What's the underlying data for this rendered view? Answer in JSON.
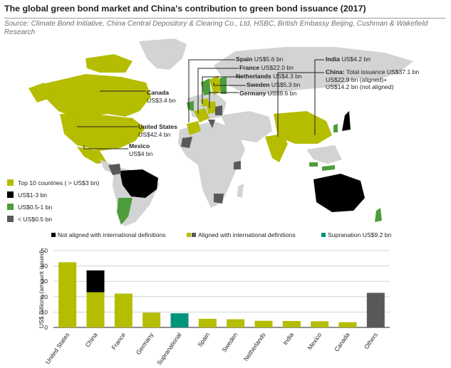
{
  "title": "The global green bond market and China's contribution to green bond issuance (2017)",
  "source": "Source: Climate Bond Initiative, China Central Depository & Clearing Co., Ltd, HSBC, British Embassy Beijing, Cushman & Wakefield Research",
  "colors": {
    "top10": "#b5bd00",
    "tier1_3": "#000000",
    "tier05_1": "#4d9d3a",
    "tierlow": "#58595b",
    "supranational": "#00957a",
    "land": "#d1d3d4",
    "others": "#58595b"
  },
  "map_labels": {
    "canada": {
      "name": "Canada",
      "value": "US$3.4 bn"
    },
    "united_states": {
      "name": "United States",
      "value": "US$42.4 bn"
    },
    "mexico": {
      "name": "Mexico",
      "value": "US$4 bn"
    },
    "spain": {
      "name": "Spain",
      "value": "US$5.6 bn"
    },
    "france": {
      "name": "France",
      "value": "US$22.0 bn"
    },
    "netherlands": {
      "name": "Netherlands",
      "value": "US$4.3 bn"
    },
    "sweden": {
      "name": "Sweden",
      "value": "US$5.3 bn"
    },
    "germany": {
      "name": "Germany",
      "value": "US$9.6 bn"
    },
    "india": {
      "name": "India",
      "value": "US$4.2 bn"
    },
    "china": {
      "name": "China:",
      "line1": "Total issuance US$37.1 bn",
      "line2": "US$22.9 bn (aligned)+",
      "line3": "US$14.2 bn (not aligned)"
    }
  },
  "map_legend": [
    {
      "label": "Top 10 countries ( > US$3 bn)",
      "color": "#b5bd00"
    },
    {
      "label": "US$1-3 bn",
      "color": "#000000"
    },
    {
      "label": "US$0.5-1 bn",
      "color": "#4d9d3a"
    },
    {
      "label": "< US$0.5 bn",
      "color": "#58595b"
    }
  ],
  "chart_data": {
    "type": "bar",
    "stacked": true,
    "categories": [
      "United States",
      "China",
      "France",
      "Germany",
      "Supranational",
      "Spain",
      "Sweden",
      "Netherlands",
      "India",
      "Mexico",
      "Canada",
      "Others"
    ],
    "series": [
      {
        "name": "Aligned with international definitions",
        "values": [
          42.4,
          22.9,
          22.0,
          9.6,
          0,
          5.6,
          5.3,
          4.3,
          4.2,
          4.0,
          3.4,
          22.5
        ]
      },
      {
        "name": "Not aligned with international definitions",
        "values": [
          0,
          14.2,
          0,
          0,
          0,
          0,
          0,
          0,
          0,
          0,
          0,
          0
        ]
      },
      {
        "name": "Supranation US$9.2 bn",
        "values": [
          0,
          0,
          0,
          0,
          9.2,
          0,
          0,
          0,
          0,
          0,
          0,
          0
        ]
      }
    ],
    "legend": [
      {
        "label": "Not aligned with international definitions",
        "colors": [
          "#000000"
        ]
      },
      {
        "label": "Aligned with international definitions",
        "colors": [
          "#b5bd00",
          "#58595b"
        ]
      },
      {
        "label": "Supranation US$9.2 bn",
        "colors": [
          "#00957a"
        ]
      }
    ],
    "ylabel": "US$ Billions (amount issued)",
    "ylim": [
      0,
      50
    ],
    "yticks": [
      0,
      10,
      20,
      30,
      40,
      50
    ],
    "grid": true
  }
}
